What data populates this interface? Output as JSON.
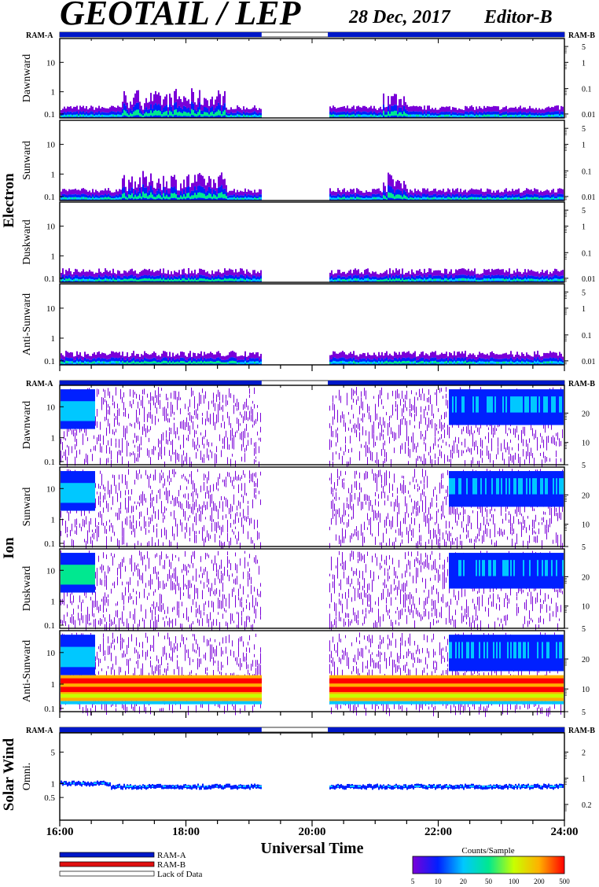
{
  "header": {
    "title": "GEOTAIL / LEP",
    "date": "28 Dec, 2017",
    "editor": "Editor-B"
  },
  "chart_data": {
    "type": "heatmap",
    "x_axis": {
      "label": "Universal Time",
      "range_hours": [
        16,
        24
      ],
      "tick_labels": [
        "16:00",
        "18:00",
        "20:00",
        "22:00",
        "24:00"
      ]
    },
    "data_gap_hours": [
      19.2,
      20.25
    ],
    "groups": [
      {
        "label": "Electron",
        "ram_left": "RAM-A",
        "ram_right": "RAM-B",
        "panels": [
          {
            "label": "Dawnward",
            "left_ticks": [
              "10",
              "1",
              "0.1"
            ],
            "right_ticks": [
              "5",
              "1",
              "0.1",
              "0.01"
            ]
          },
          {
            "label": "Sunward",
            "left_ticks": [
              "10",
              "1",
              "0.1"
            ],
            "right_ticks": [
              "5",
              "1",
              "0.1",
              "0.01"
            ]
          },
          {
            "label": "Duskward",
            "left_ticks": [
              "10",
              "1",
              "0.1"
            ],
            "right_ticks": [
              "5",
              "1",
              "0.1",
              "0.01"
            ]
          },
          {
            "label": "Anti-Sunward",
            "left_ticks": [
              "10",
              "1",
              "0.1"
            ],
            "right_ticks": [
              "5",
              "1",
              "0.1",
              "0.01"
            ]
          }
        ]
      },
      {
        "label": "Ion",
        "ram_left": "RAM-A",
        "ram_right": "RAM-B",
        "panels": [
          {
            "label": "Dawnward",
            "left_ticks": [
              "10",
              "1",
              "0.1"
            ],
            "right_ticks": [
              "20",
              "10",
              "5"
            ]
          },
          {
            "label": "Sunward",
            "left_ticks": [
              "10",
              "1",
              "0.1"
            ],
            "right_ticks": [
              "20",
              "10",
              "5"
            ]
          },
          {
            "label": "Duskward",
            "left_ticks": [
              "10",
              "1",
              "0.1"
            ],
            "right_ticks": [
              "20",
              "10",
              "5"
            ]
          },
          {
            "label": "Anti-Sunward",
            "left_ticks": [
              "10",
              "1",
              "0.1"
            ],
            "right_ticks": [
              "20",
              "10",
              "5"
            ]
          }
        ]
      },
      {
        "label": "Solar Wind",
        "ram_left": "RAM-A",
        "ram_right": "RAM-B",
        "panels": [
          {
            "label": "Omni.",
            "left_ticks": [
              "5",
              "1",
              "0.5"
            ],
            "right_ticks": [
              "2",
              "1",
              "0.2"
            ]
          }
        ]
      }
    ],
    "legend": {
      "items": [
        {
          "label": "RAM-A",
          "color": "#0018c8"
        },
        {
          "label": "RAM-B",
          "color": "#e01010"
        },
        {
          "label": "Lack of Data",
          "color": "#ffffff"
        }
      ]
    },
    "colorbar": {
      "title": "Counts/Sample",
      "tick_labels": [
        "5",
        "10",
        "20",
        "50",
        "100",
        "200",
        "500"
      ],
      "colors": [
        "#7a00d8",
        "#0020ff",
        "#00c8ff",
        "#00e890",
        "#c8ff00",
        "#ffb000",
        "#ff0000"
      ]
    }
  }
}
